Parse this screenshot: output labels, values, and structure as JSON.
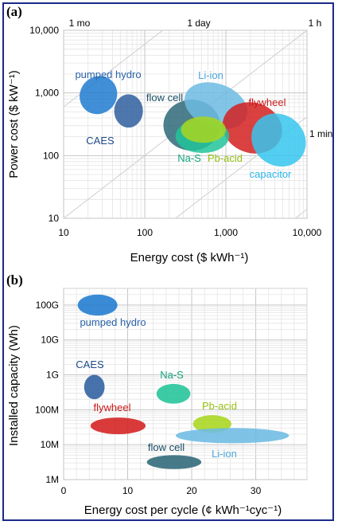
{
  "chart_data": [
    {
      "panel": "(a)",
      "type": "scatter",
      "xlabel": "Energy cost ($ kWh⁻¹)",
      "ylabel": "Power cost ($ kW⁻¹)",
      "x_scale": "log",
      "y_scale": "log",
      "xlim": [
        10,
        10000
      ],
      "ylim": [
        10,
        10000
      ],
      "x_ticks": [
        "10",
        "100",
        "1,000",
        "10,000"
      ],
      "y_ticks": [
        "10",
        "100",
        "1,000",
        "10,000"
      ],
      "top_ticks": [
        "1 mo",
        "1 day",
        "1 h"
      ],
      "right_annotation": "1 min",
      "grid": true,
      "series": [
        {
          "name": "pumped hydro",
          "color": "#1f7bd0",
          "label_color": "#2a62a8",
          "x_range": [
            16,
            45
          ],
          "y_range": [
            450,
            1900
          ]
        },
        {
          "name": "CAES",
          "color": "#2f5f9f",
          "label_color": "#1f4a8a",
          "x_range": [
            42,
            95
          ],
          "y_range": [
            280,
            950
          ]
        },
        {
          "name": "flow cell",
          "color": "#2e6878",
          "label_color": "#1a4f66",
          "x_range": [
            170,
            850
          ],
          "y_range": [
            120,
            780
          ]
        },
        {
          "name": "Li-ion",
          "color": "#6dbbe2",
          "label_color": "#4aa6dc",
          "x_range": [
            300,
            1900
          ],
          "y_range": [
            280,
            1400
          ]
        },
        {
          "name": "flywheel",
          "color": "#d42020",
          "label_color": "#c81818",
          "x_range": [
            900,
            5000
          ],
          "y_range": [
            110,
            700
          ]
        },
        {
          "name": "capacitor",
          "color": "#36c6ee",
          "label_color": "#2bb5e8",
          "x_range": [
            2000,
            10000
          ],
          "y_range": [
            70,
            450
          ]
        },
        {
          "name": "Na-S",
          "color": "#22c49a",
          "label_color": "#15a57e",
          "x_range": [
            240,
            1100
          ],
          "y_range": [
            110,
            380
          ]
        },
        {
          "name": "Pb-acid",
          "color": "#a8d61e",
          "label_color": "#96c014",
          "x_range": [
            280,
            1000
          ],
          "y_range": [
            160,
            420
          ]
        }
      ]
    },
    {
      "panel": "(b)",
      "type": "scatter",
      "xlabel": "Energy cost per cycle (¢ kWh⁻¹cyc⁻¹)",
      "ylabel": "Installed capacity (Wh)",
      "y_scale": "log",
      "xlim": [
        0,
        38
      ],
      "ylim": [
        1000000,
        300000000000
      ],
      "x_ticks": [
        "0",
        "10",
        "20",
        "30"
      ],
      "y_ticks": [
        "1M",
        "10M",
        "100M",
        "1G",
        "10G",
        "100G"
      ],
      "grid": true,
      "series": [
        {
          "name": "pumped hydro",
          "color": "#1f7bd0",
          "label_color": "#2a62a8",
          "x_range": [
            2.2,
            8.4
          ],
          "y_range": [
            50000000000,
            200000000000
          ]
        },
        {
          "name": "CAES",
          "color": "#2f5f9f",
          "label_color": "#1f4a8a",
          "x_range": [
            3.2,
            6.4
          ],
          "y_range": [
            200000000,
            1000000000
          ]
        },
        {
          "name": "Na-S",
          "color": "#22c49a",
          "label_color": "#15a57e",
          "x_range": [
            14.5,
            19.8
          ],
          "y_range": [
            150000000,
            550000000
          ]
        },
        {
          "name": "flywheel",
          "color": "#d42020",
          "label_color": "#c81818",
          "x_range": [
            4.2,
            12.8
          ],
          "y_range": [
            20000000,
            60000000
          ]
        },
        {
          "name": "Pb-acid",
          "color": "#a8d61e",
          "label_color": "#96c014",
          "x_range": [
            20.2,
            26.2
          ],
          "y_range": [
            22000000,
            70000000
          ]
        },
        {
          "name": "Li-ion",
          "color": "#6dbbe2",
          "label_color": "#4aa6dc",
          "x_range": [
            17.5,
            35.2
          ],
          "y_range": [
            11000000,
            30000000
          ]
        },
        {
          "name": "flow cell",
          "color": "#2e6878",
          "label_color": "#1a4f66",
          "x_range": [
            13,
            21.5
          ],
          "y_range": [
            2000000,
            5000000
          ]
        }
      ]
    }
  ]
}
